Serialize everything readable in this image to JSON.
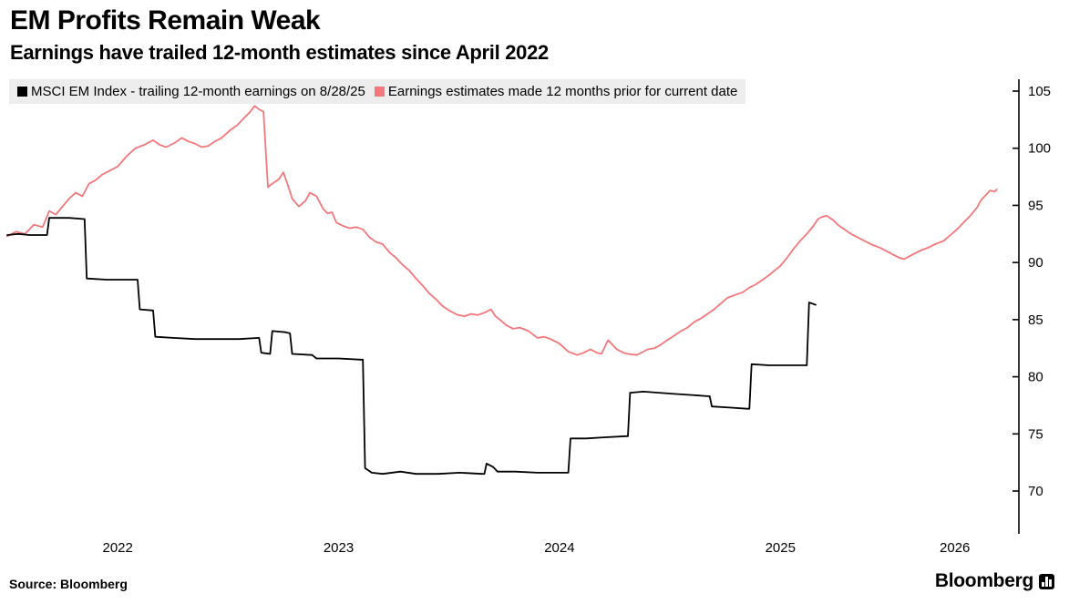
{
  "header": {
    "title": "EM Profits Remain Weak",
    "subtitle": "Earnings have trailed 12-month estimates since April 2022"
  },
  "legend": {
    "items": [
      {
        "label": "MSCI EM Index - trailing 12-month earnings on 8/28/25",
        "color": "#000000"
      },
      {
        "label": "Earnings estimates made 12 months prior for current date",
        "color": "#f4777b"
      }
    ]
  },
  "footer": {
    "source": "Source: Bloomberg",
    "brand": "Bloomberg"
  },
  "chart_data": {
    "type": "line",
    "title": "EM Profits Remain Weak",
    "subtitle": "Earnings have trailed 12-month estimates since April 2022",
    "xlabel": "",
    "ylabel": "",
    "grid": false,
    "axis_side": "right",
    "legend_position": "top",
    "xlim": [
      2022.0,
      2026.58
    ],
    "ylim": [
      66.5,
      106.5
    ],
    "y_ticks": [
      70,
      75,
      80,
      85,
      90,
      95,
      100,
      105
    ],
    "x_ticks": [
      {
        "label": "2022",
        "x": 2022.5
      },
      {
        "label": "2023",
        "x": 2023.5
      },
      {
        "label": "2024",
        "x": 2024.5
      },
      {
        "label": "2025",
        "x": 2025.5
      },
      {
        "label": "2026",
        "x": 2026.29
      }
    ],
    "series": [
      {
        "name": "MSCI EM Index - trailing 12-month earnings on 8/28/25",
        "color": "#000000",
        "points": [
          [
            2022.0,
            92.4
          ],
          [
            2022.05,
            92.5
          ],
          [
            2022.1,
            92.4
          ],
          [
            2022.18,
            92.4
          ],
          [
            2022.19,
            93.9
          ],
          [
            2022.28,
            93.9
          ],
          [
            2022.35,
            93.8
          ],
          [
            2022.36,
            88.6
          ],
          [
            2022.45,
            88.5
          ],
          [
            2022.55,
            88.5
          ],
          [
            2022.59,
            88.5
          ],
          [
            2022.6,
            85.9
          ],
          [
            2022.66,
            85.8
          ],
          [
            2022.67,
            83.5
          ],
          [
            2022.75,
            83.4
          ],
          [
            2022.85,
            83.3
          ],
          [
            2022.95,
            83.3
          ],
          [
            2023.05,
            83.3
          ],
          [
            2023.14,
            83.4
          ],
          [
            2023.15,
            82.1
          ],
          [
            2023.19,
            82.0
          ],
          [
            2023.2,
            84.0
          ],
          [
            2023.26,
            83.9
          ],
          [
            2023.28,
            83.8
          ],
          [
            2023.29,
            82.0
          ],
          [
            2023.38,
            81.9
          ],
          [
            2023.4,
            81.6
          ],
          [
            2023.5,
            81.6
          ],
          [
            2023.6,
            81.5
          ],
          [
            2023.61,
            81.5
          ],
          [
            2023.62,
            72.0
          ],
          [
            2023.65,
            71.6
          ],
          [
            2023.7,
            71.5
          ],
          [
            2023.78,
            71.7
          ],
          [
            2023.85,
            71.5
          ],
          [
            2023.95,
            71.5
          ],
          [
            2024.05,
            71.6
          ],
          [
            2024.15,
            71.5
          ],
          [
            2024.16,
            71.5
          ],
          [
            2024.17,
            72.4
          ],
          [
            2024.2,
            72.1
          ],
          [
            2024.22,
            71.7
          ],
          [
            2024.3,
            71.7
          ],
          [
            2024.4,
            71.6
          ],
          [
            2024.5,
            71.6
          ],
          [
            2024.54,
            71.6
          ],
          [
            2024.55,
            74.6
          ],
          [
            2024.62,
            74.6
          ],
          [
            2024.7,
            74.7
          ],
          [
            2024.8,
            74.8
          ],
          [
            2024.81,
            74.8
          ],
          [
            2024.82,
            78.6
          ],
          [
            2024.88,
            78.7
          ],
          [
            2024.95,
            78.6
          ],
          [
            2025.02,
            78.5
          ],
          [
            2025.1,
            78.4
          ],
          [
            2025.17,
            78.3
          ],
          [
            2025.18,
            78.3
          ],
          [
            2025.19,
            77.4
          ],
          [
            2025.27,
            77.3
          ],
          [
            2025.35,
            77.2
          ],
          [
            2025.36,
            77.2
          ],
          [
            2025.37,
            81.1
          ],
          [
            2025.45,
            81.0
          ],
          [
            2025.52,
            81.0
          ],
          [
            2025.6,
            81.0
          ],
          [
            2025.62,
            81.0
          ],
          [
            2025.63,
            86.5
          ],
          [
            2025.66,
            86.3
          ]
        ]
      },
      {
        "name": "Earnings estimates made 12 months prior for current date",
        "color": "#f4777b",
        "points": [
          [
            2022.0,
            92.3
          ],
          [
            2022.04,
            92.7
          ],
          [
            2022.08,
            92.5
          ],
          [
            2022.12,
            93.3
          ],
          [
            2022.16,
            93.1
          ],
          [
            2022.19,
            94.5
          ],
          [
            2022.22,
            94.2
          ],
          [
            2022.25,
            94.9
          ],
          [
            2022.28,
            95.6
          ],
          [
            2022.31,
            96.1
          ],
          [
            2022.34,
            95.8
          ],
          [
            2022.37,
            96.9
          ],
          [
            2022.4,
            97.2
          ],
          [
            2022.43,
            97.7
          ],
          [
            2022.46,
            98.0
          ],
          [
            2022.5,
            98.4
          ],
          [
            2022.54,
            99.3
          ],
          [
            2022.58,
            100.0
          ],
          [
            2022.62,
            100.3
          ],
          [
            2022.66,
            100.7
          ],
          [
            2022.69,
            100.3
          ],
          [
            2022.72,
            100.1
          ],
          [
            2022.76,
            100.5
          ],
          [
            2022.79,
            100.9
          ],
          [
            2022.82,
            100.6
          ],
          [
            2022.85,
            100.4
          ],
          [
            2022.88,
            100.1
          ],
          [
            2022.91,
            100.2
          ],
          [
            2022.94,
            100.6
          ],
          [
            2022.97,
            100.9
          ],
          [
            2023.01,
            101.6
          ],
          [
            2023.04,
            102.0
          ],
          [
            2023.07,
            102.6
          ],
          [
            2023.1,
            103.2
          ],
          [
            2023.12,
            103.7
          ],
          [
            2023.14,
            103.4
          ],
          [
            2023.16,
            103.2
          ],
          [
            2023.18,
            96.6
          ],
          [
            2023.2,
            96.9
          ],
          [
            2023.23,
            97.3
          ],
          [
            2023.25,
            97.9
          ],
          [
            2023.27,
            96.8
          ],
          [
            2023.29,
            95.6
          ],
          [
            2023.32,
            94.9
          ],
          [
            2023.35,
            95.4
          ],
          [
            2023.37,
            96.1
          ],
          [
            2023.4,
            95.8
          ],
          [
            2023.43,
            94.7
          ],
          [
            2023.45,
            94.3
          ],
          [
            2023.47,
            94.4
          ],
          [
            2023.49,
            93.5
          ],
          [
            2023.52,
            93.2
          ],
          [
            2023.55,
            93.0
          ],
          [
            2023.58,
            93.1
          ],
          [
            2023.61,
            92.9
          ],
          [
            2023.64,
            92.2
          ],
          [
            2023.67,
            91.8
          ],
          [
            2023.7,
            91.6
          ],
          [
            2023.73,
            90.9
          ],
          [
            2023.76,
            90.4
          ],
          [
            2023.79,
            89.8
          ],
          [
            2023.82,
            89.3
          ],
          [
            2023.85,
            88.6
          ],
          [
            2023.88,
            88.0
          ],
          [
            2023.91,
            87.3
          ],
          [
            2023.94,
            86.8
          ],
          [
            2023.97,
            86.2
          ],
          [
            2024.0,
            85.8
          ],
          [
            2024.04,
            85.4
          ],
          [
            2024.07,
            85.3
          ],
          [
            2024.1,
            85.5
          ],
          [
            2024.13,
            85.4
          ],
          [
            2024.16,
            85.6
          ],
          [
            2024.19,
            85.9
          ],
          [
            2024.21,
            85.3
          ],
          [
            2024.23,
            85.0
          ],
          [
            2024.26,
            84.5
          ],
          [
            2024.29,
            84.2
          ],
          [
            2024.32,
            84.3
          ],
          [
            2024.36,
            84.0
          ],
          [
            2024.4,
            83.4
          ],
          [
            2024.43,
            83.5
          ],
          [
            2024.46,
            83.3
          ],
          [
            2024.5,
            82.9
          ],
          [
            2024.54,
            82.2
          ],
          [
            2024.58,
            81.9
          ],
          [
            2024.61,
            82.1
          ],
          [
            2024.64,
            82.4
          ],
          [
            2024.67,
            82.1
          ],
          [
            2024.69,
            82.0
          ],
          [
            2024.72,
            83.2
          ],
          [
            2024.74,
            82.8
          ],
          [
            2024.76,
            82.4
          ],
          [
            2024.79,
            82.1
          ],
          [
            2024.81,
            82.0
          ],
          [
            2024.85,
            81.9
          ],
          [
            2024.88,
            82.2
          ],
          [
            2024.9,
            82.4
          ],
          [
            2024.93,
            82.5
          ],
          [
            2024.95,
            82.7
          ],
          [
            2024.98,
            83.1
          ],
          [
            2025.02,
            83.6
          ],
          [
            2025.05,
            84.0
          ],
          [
            2025.08,
            84.3
          ],
          [
            2025.11,
            84.8
          ],
          [
            2025.14,
            85.1
          ],
          [
            2025.17,
            85.5
          ],
          [
            2025.2,
            85.9
          ],
          [
            2025.23,
            86.4
          ],
          [
            2025.26,
            86.9
          ],
          [
            2025.3,
            87.2
          ],
          [
            2025.33,
            87.4
          ],
          [
            2025.36,
            87.8
          ],
          [
            2025.39,
            88.1
          ],
          [
            2025.42,
            88.5
          ],
          [
            2025.45,
            88.9
          ],
          [
            2025.48,
            89.4
          ],
          [
            2025.5,
            89.7
          ],
          [
            2025.53,
            90.4
          ],
          [
            2025.56,
            91.2
          ],
          [
            2025.59,
            91.9
          ],
          [
            2025.62,
            92.5
          ],
          [
            2025.65,
            93.2
          ],
          [
            2025.67,
            93.8
          ],
          [
            2025.69,
            94.0
          ],
          [
            2025.71,
            94.1
          ],
          [
            2025.74,
            93.7
          ],
          [
            2025.76,
            93.3
          ],
          [
            2025.79,
            92.9
          ],
          [
            2025.82,
            92.5
          ],
          [
            2025.85,
            92.2
          ],
          [
            2025.88,
            91.9
          ],
          [
            2025.91,
            91.6
          ],
          [
            2025.95,
            91.3
          ],
          [
            2025.98,
            91.0
          ],
          [
            2026.01,
            90.7
          ],
          [
            2026.04,
            90.4
          ],
          [
            2026.06,
            90.3
          ],
          [
            2026.09,
            90.6
          ],
          [
            2026.11,
            90.8
          ],
          [
            2026.14,
            91.1
          ],
          [
            2026.17,
            91.3
          ],
          [
            2026.2,
            91.6
          ],
          [
            2026.24,
            91.9
          ],
          [
            2026.27,
            92.4
          ],
          [
            2026.3,
            92.9
          ],
          [
            2026.33,
            93.5
          ],
          [
            2026.36,
            94.1
          ],
          [
            2026.39,
            94.8
          ],
          [
            2026.41,
            95.5
          ],
          [
            2026.43,
            95.9
          ],
          [
            2026.45,
            96.3
          ],
          [
            2026.47,
            96.2
          ],
          [
            2026.48,
            96.4
          ]
        ]
      }
    ]
  }
}
